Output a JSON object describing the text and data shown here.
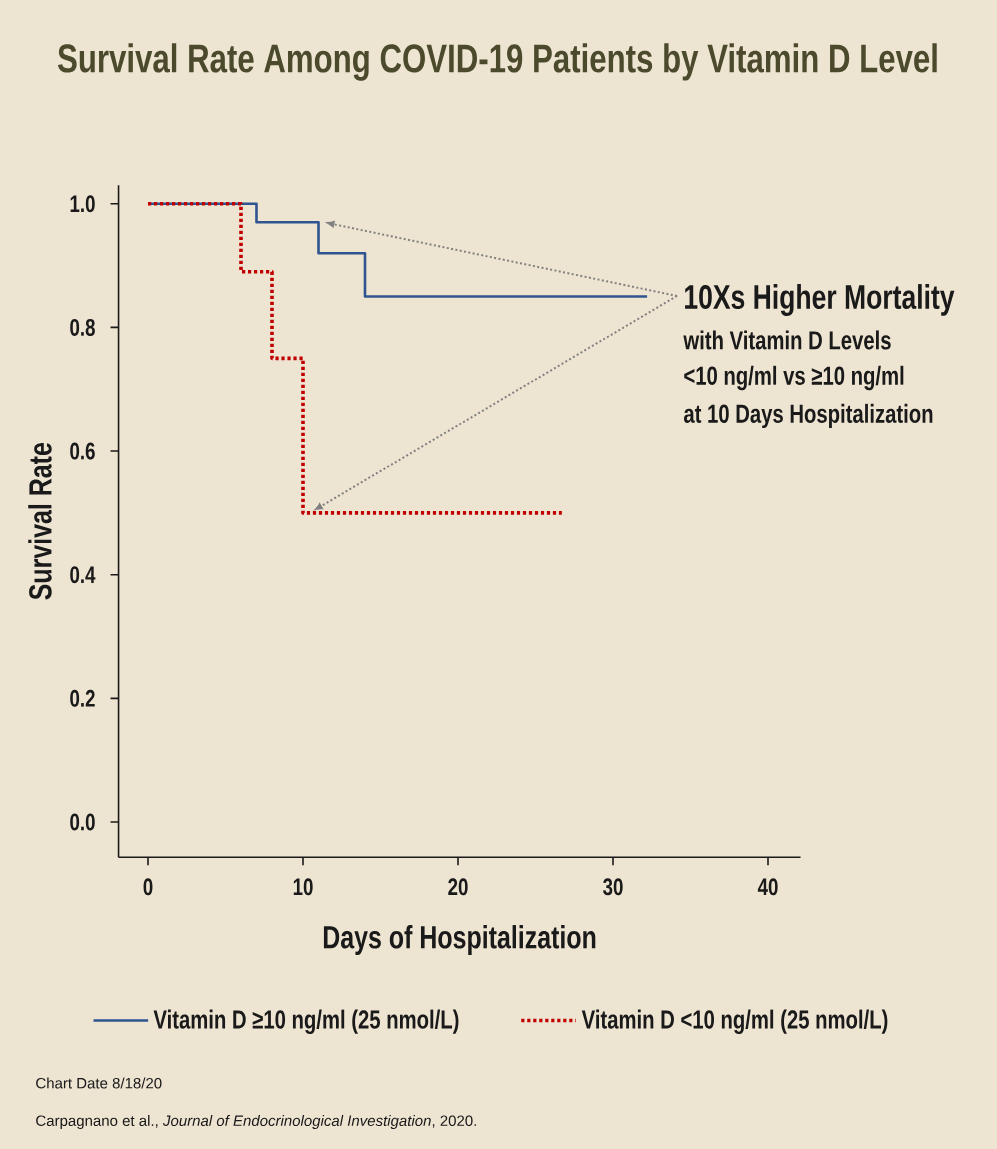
{
  "chart_data": {
    "type": "step",
    "title": "Survival Rate Among COVID-19 Patients by Vitamin D Level",
    "xlabel": "Days of Hospitalization",
    "ylabel": "Survival Rate",
    "xlim": [
      -1.9,
      42.1
    ],
    "ylim": [
      -0.057,
      1.03
    ],
    "xticks": [
      0,
      10,
      20,
      30,
      40
    ],
    "yticks": [
      {
        "value": 0,
        "label": "0.0"
      },
      {
        "value": 0.2,
        "label": "0.2"
      },
      {
        "value": 0.4,
        "label": "0.4"
      },
      {
        "value": 0.6,
        "label": "0.6"
      },
      {
        "value": 0.8,
        "label": "0.8"
      },
      {
        "value": 1,
        "label": "1.0"
      }
    ],
    "series": [
      {
        "name": "Vitamin D ≥10 ng/ml (25 nmol/L)",
        "color": "#2f5490",
        "line_style": "solid",
        "x": [
          0,
          7,
          11,
          14,
          32.2
        ],
        "values": [
          1,
          0.97,
          0.92,
          0.85,
          0.85
        ]
      },
      {
        "name": "Vitamin D <10 ng/ml (25 nmol/L)",
        "color": "#c00000",
        "line_style": "dotted",
        "x": [
          0,
          6,
          8,
          10,
          26.7
        ],
        "values": [
          1,
          0.89,
          0.75,
          0.5,
          0.5
        ]
      }
    ],
    "legend": "bottom",
    "marker": "none",
    "annotations": [
      "10Xs Higher Mortality",
      "with Vitamin D Levels",
      "<10 ng/ml vs ≥10 ng/ml",
      "at 10 Days Hospitalization",
      "Chart Date 8/18/20",
      "Carpagnano et al., *Journal of Endocrinological Investigation*, 2020."
    ]
  }
}
